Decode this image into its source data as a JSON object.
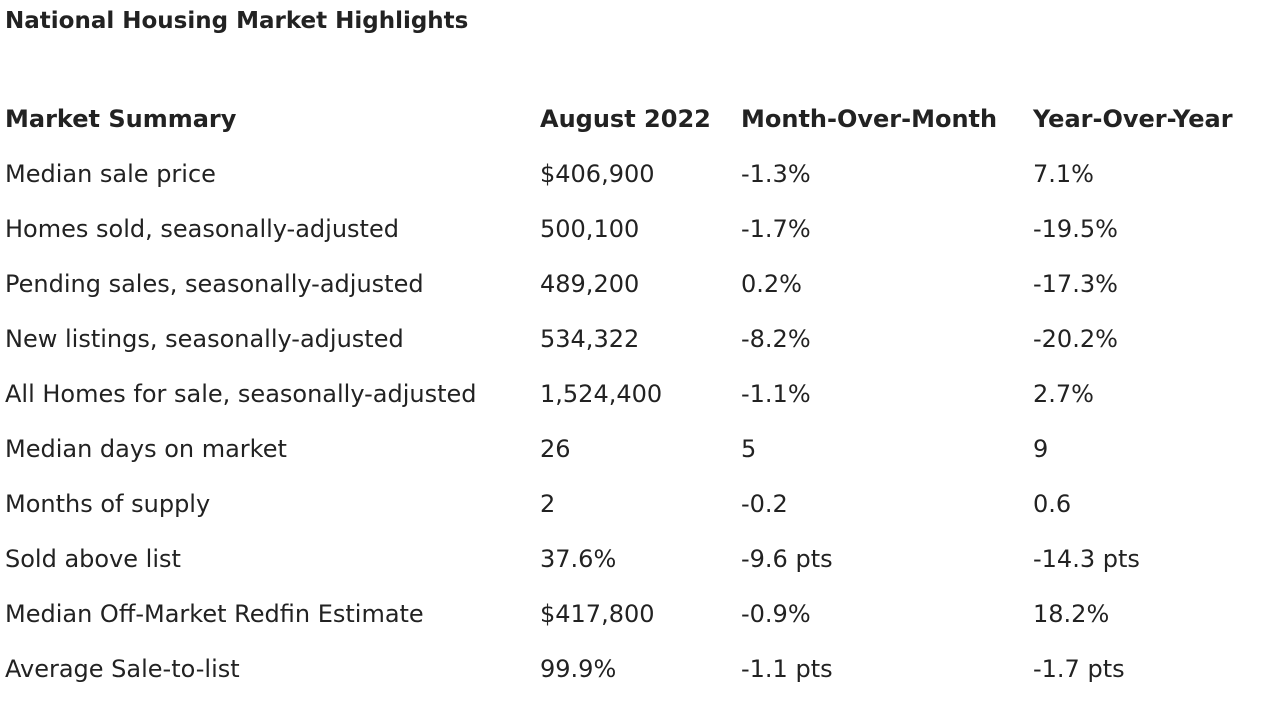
{
  "title": "National Housing Market Highlights",
  "table": {
    "headers": [
      "Market Summary",
      "August 2022",
      "Month-Over-Month",
      "Year-Over-Year"
    ],
    "rows": [
      [
        "Median sale price",
        "$406,900",
        "-1.3%",
        "7.1%"
      ],
      [
        "Homes sold, seasonally-adjusted",
        "500,100",
        "-1.7%",
        "-19.5%"
      ],
      [
        "Pending sales, seasonally-adjusted",
        "489,200",
        "0.2%",
        "-17.3%"
      ],
      [
        "New listings, seasonally-adjusted",
        "534,322",
        "-8.2%",
        "-20.2%"
      ],
      [
        "All Homes for sale, seasonally-adjusted",
        "1,524,400",
        "-1.1%",
        "2.7%"
      ],
      [
        "Median days on market",
        "26",
        "5",
        "9"
      ],
      [
        "Months of supply",
        "2",
        "-0.2",
        "0.6"
      ],
      [
        "Sold above list",
        "37.6%",
        "-9.6 pts",
        "-14.3 pts"
      ],
      [
        "Median Off-Market Redfin Estimate",
        "$417,800",
        "-0.9%",
        "18.2%"
      ],
      [
        "Average Sale-to-list",
        "99.9%",
        "-1.1 pts",
        "-1.7 pts"
      ]
    ]
  }
}
